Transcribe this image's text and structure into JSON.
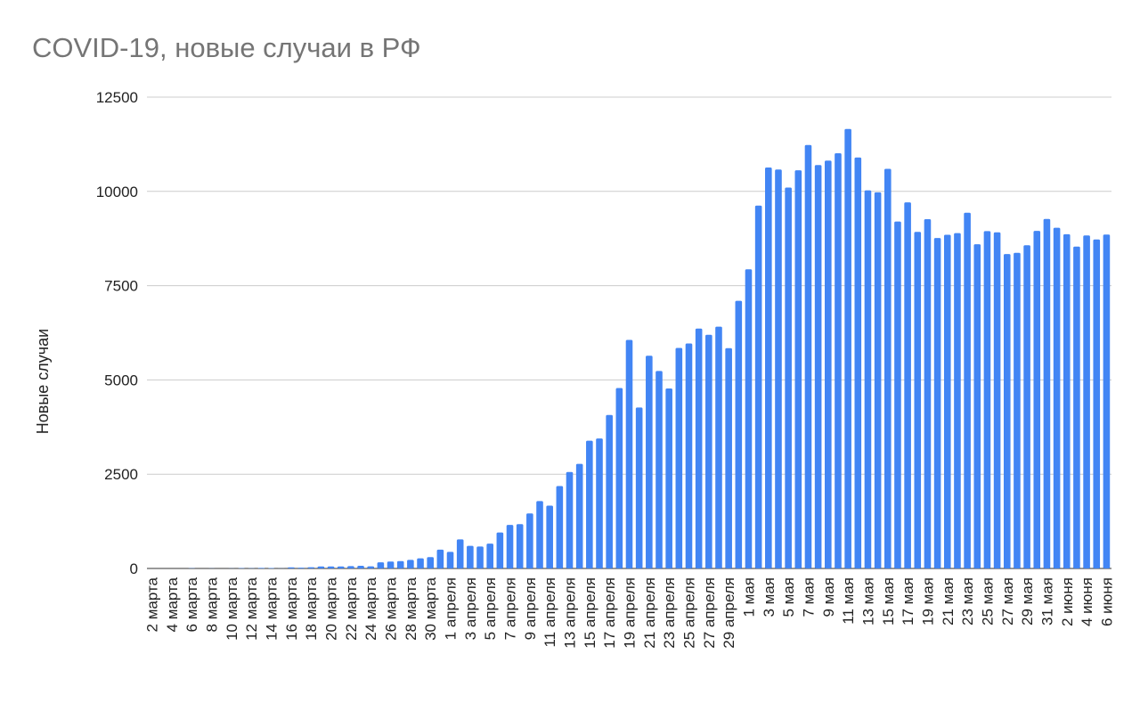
{
  "chart_data": {
    "type": "bar",
    "title": "COVID-19, новые случаи в РФ",
    "y_label": "Новые случаи",
    "categories": [
      "2 марта",
      null,
      "4 марта",
      null,
      "6 марта",
      null,
      "8 марта",
      null,
      "10 марта",
      null,
      "12 марта",
      null,
      "14 марта",
      null,
      "16 марта",
      null,
      "18 марта",
      null,
      "20 марта",
      null,
      "22 марта",
      null,
      "24 марта",
      null,
      "26 марта",
      null,
      "28 марта",
      null,
      "30 марта",
      null,
      "1 апреля",
      null,
      "3 апреля",
      null,
      "5 апреля",
      null,
      "7 апреля",
      null,
      "9 апреля",
      null,
      "11 апреля",
      null,
      "13 апреля",
      null,
      "15 апреля",
      null,
      "17 апреля",
      null,
      "19 апреля",
      null,
      "21 апреля",
      null,
      "23 апреля",
      null,
      "25 апреля",
      null,
      "27 апреля",
      null,
      "29 апреля",
      null,
      "1 мая",
      null,
      "3 мая",
      null,
      "5 мая",
      null,
      "7 мая",
      null,
      "9 мая",
      null,
      "11 мая",
      null,
      "13 мая",
      null,
      "15 мая",
      null,
      "17 мая",
      null,
      "19 мая",
      null,
      "21 мая",
      null,
      "23 мая",
      null,
      "25 мая",
      null,
      "27 мая",
      null,
      "29 мая",
      null,
      "31 мая",
      null,
      "2 июня",
      null,
      "4 июня",
      null,
      "6 июня"
    ],
    "values": [
      0,
      1,
      0,
      1,
      6,
      0,
      3,
      0,
      3,
      8,
      6,
      14,
      11,
      4,
      30,
      21,
      33,
      52,
      54,
      53,
      62,
      71,
      57,
      163,
      182,
      196,
      228,
      270,
      302,
      500,
      440,
      771,
      601,
      582,
      658,
      954,
      1154,
      1175,
      1459,
      1786,
      1667,
      2186,
      2558,
      2774,
      3388,
      3448,
      4070,
      4785,
      6060,
      4268,
      5642,
      5236,
      4774,
      5849,
      5966,
      6361,
      6198,
      6411,
      5841,
      7099,
      7933,
      9623,
      10633,
      10581,
      10102,
      10559,
      11231,
      10699,
      10817,
      11012,
      11656,
      10899,
      10028,
      9974,
      10598,
      9200,
      9709,
      8926,
      9263,
      8764,
      8849,
      8894,
      9434,
      8599,
      8946,
      8915,
      8338,
      8371,
      8572,
      8952,
      9268,
      9035,
      8863,
      8536,
      8831,
      8726,
      8855
    ],
    "color": "#4285f4",
    "ylim": [
      0,
      12500
    ],
    "yticks": [
      0,
      2500,
      5000,
      7500,
      10000,
      12500
    ],
    "grid": true
  }
}
